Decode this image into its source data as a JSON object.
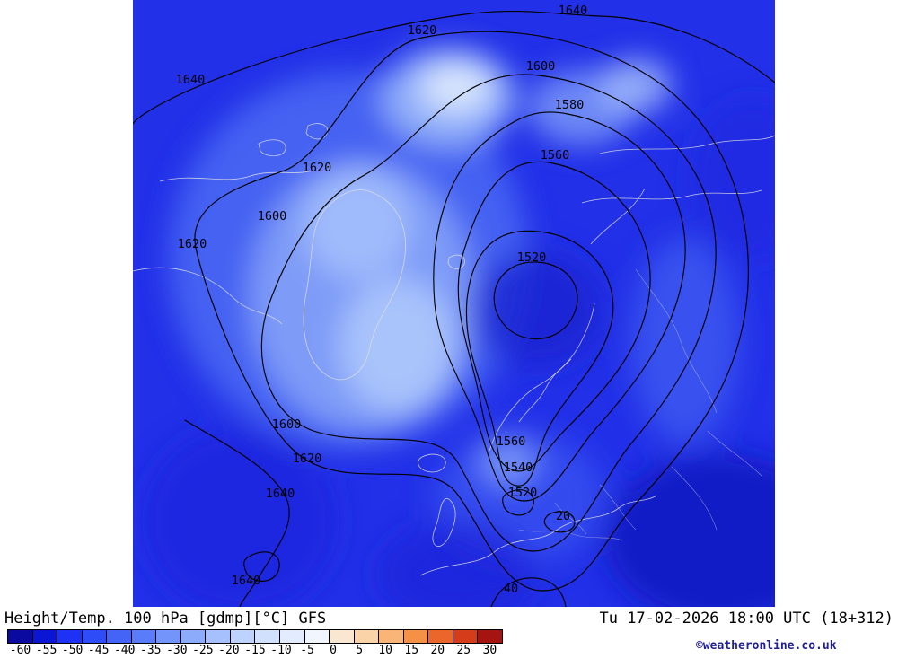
{
  "header": {
    "title_left": "Height/Temp. 100 hPa [gdmp][°C] GFS",
    "title_right": "Tu 17-02-2026 18:00 UTC (18+312)"
  },
  "footer": {
    "copyright": "©weatheronline.co.uk"
  },
  "chart_data": {
    "type": "heatmap",
    "title": "Height/Temp. 100 hPa [gdmp][°C] GFS",
    "model": "GFS",
    "valid_time": "Tu 17-02-2026 18:00 UTC (18+312)",
    "projection": "northern-hemisphere polar stereographic",
    "contour_levels_gdmp": [
      1520,
      1540,
      1560,
      1580,
      1600,
      1620,
      1640
    ],
    "contour_annotations": [
      {
        "text": "1640"
      },
      {
        "text": "1620"
      },
      {
        "text": "1600"
      },
      {
        "text": "1640"
      },
      {
        "text": "1580"
      },
      {
        "text": "1560"
      },
      {
        "text": "1620"
      },
      {
        "text": "1600"
      },
      {
        "text": "1620"
      },
      {
        "text": "1520"
      },
      {
        "text": "1600"
      },
      {
        "text": "1620"
      },
      {
        "text": "1640"
      },
      {
        "text": "1640"
      },
      {
        "text": "1560"
      },
      {
        "text": "1540"
      },
      {
        "text": "1520"
      },
      {
        "text": "20"
      },
      {
        "text": "40"
      }
    ],
    "colorbar": {
      "unit": "°C",
      "min": -60,
      "max": 30,
      "step": 5,
      "tick_labels": [
        "-60",
        "-55",
        "-50",
        "-45",
        "-40",
        "-35",
        "-30",
        "-25",
        "-20",
        "-15",
        "-10",
        "-5",
        "0",
        "5",
        "10",
        "15",
        "20",
        "25",
        "30"
      ],
      "colors": [
        "#0a0aa0",
        "#0a16d4",
        "#1e32f6",
        "#2e4cf8",
        "#4464f8",
        "#5a7cfa",
        "#7394fb",
        "#8cabfb",
        "#a5c0fc",
        "#bdd3fd",
        "#d0e0fd",
        "#e2ecfe",
        "#f0f5fe",
        "#f9e7d2",
        "#fbd3a8",
        "#f9b578",
        "#f59047",
        "#ea662a",
        "#d43c1a",
        "#a51410"
      ]
    },
    "shading_note": "all map temperatures in blue range (below -40°C)"
  }
}
